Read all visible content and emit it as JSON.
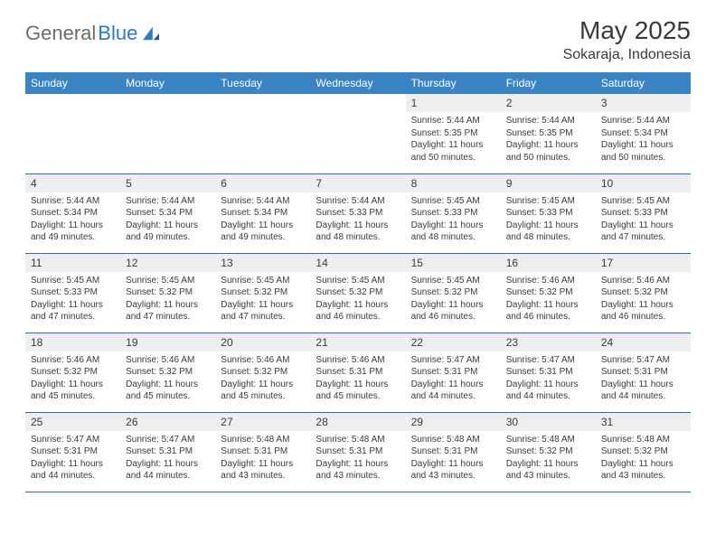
{
  "brand": {
    "text_gray": "General",
    "text_blue": "Blue"
  },
  "title": {
    "month": "May 2025",
    "location": "Sokaraja, Indonesia"
  },
  "colors": {
    "header_bg": "#3b84c4",
    "header_fg": "#ffffff",
    "daynum_bg": "#eceef0",
    "row_border": "#2f6fa8",
    "text": "#3a3a3a",
    "logo_gray": "#6d6d6d",
    "logo_blue": "#2f7ac0",
    "page_bg": "#ffffff"
  },
  "day_headers": [
    "Sunday",
    "Monday",
    "Tuesday",
    "Wednesday",
    "Thursday",
    "Friday",
    "Saturday"
  ],
  "weeks": [
    [
      {
        "blank": true
      },
      {
        "blank": true
      },
      {
        "blank": true
      },
      {
        "blank": true
      },
      {
        "n": "1",
        "sr": "5:44 AM",
        "ss": "5:35 PM",
        "dl": "11 hours and 50 minutes."
      },
      {
        "n": "2",
        "sr": "5:44 AM",
        "ss": "5:35 PM",
        "dl": "11 hours and 50 minutes."
      },
      {
        "n": "3",
        "sr": "5:44 AM",
        "ss": "5:34 PM",
        "dl": "11 hours and 50 minutes."
      }
    ],
    [
      {
        "n": "4",
        "sr": "5:44 AM",
        "ss": "5:34 PM",
        "dl": "11 hours and 49 minutes."
      },
      {
        "n": "5",
        "sr": "5:44 AM",
        "ss": "5:34 PM",
        "dl": "11 hours and 49 minutes."
      },
      {
        "n": "6",
        "sr": "5:44 AM",
        "ss": "5:34 PM",
        "dl": "11 hours and 49 minutes."
      },
      {
        "n": "7",
        "sr": "5:44 AM",
        "ss": "5:33 PM",
        "dl": "11 hours and 48 minutes."
      },
      {
        "n": "8",
        "sr": "5:45 AM",
        "ss": "5:33 PM",
        "dl": "11 hours and 48 minutes."
      },
      {
        "n": "9",
        "sr": "5:45 AM",
        "ss": "5:33 PM",
        "dl": "11 hours and 48 minutes."
      },
      {
        "n": "10",
        "sr": "5:45 AM",
        "ss": "5:33 PM",
        "dl": "11 hours and 47 minutes."
      }
    ],
    [
      {
        "n": "11",
        "sr": "5:45 AM",
        "ss": "5:33 PM",
        "dl": "11 hours and 47 minutes."
      },
      {
        "n": "12",
        "sr": "5:45 AM",
        "ss": "5:32 PM",
        "dl": "11 hours and 47 minutes."
      },
      {
        "n": "13",
        "sr": "5:45 AM",
        "ss": "5:32 PM",
        "dl": "11 hours and 47 minutes."
      },
      {
        "n": "14",
        "sr": "5:45 AM",
        "ss": "5:32 PM",
        "dl": "11 hours and 46 minutes."
      },
      {
        "n": "15",
        "sr": "5:45 AM",
        "ss": "5:32 PM",
        "dl": "11 hours and 46 minutes."
      },
      {
        "n": "16",
        "sr": "5:46 AM",
        "ss": "5:32 PM",
        "dl": "11 hours and 46 minutes."
      },
      {
        "n": "17",
        "sr": "5:46 AM",
        "ss": "5:32 PM",
        "dl": "11 hours and 46 minutes."
      }
    ],
    [
      {
        "n": "18",
        "sr": "5:46 AM",
        "ss": "5:32 PM",
        "dl": "11 hours and 45 minutes."
      },
      {
        "n": "19",
        "sr": "5:46 AM",
        "ss": "5:32 PM",
        "dl": "11 hours and 45 minutes."
      },
      {
        "n": "20",
        "sr": "5:46 AM",
        "ss": "5:32 PM",
        "dl": "11 hours and 45 minutes."
      },
      {
        "n": "21",
        "sr": "5:46 AM",
        "ss": "5:31 PM",
        "dl": "11 hours and 45 minutes."
      },
      {
        "n": "22",
        "sr": "5:47 AM",
        "ss": "5:31 PM",
        "dl": "11 hours and 44 minutes."
      },
      {
        "n": "23",
        "sr": "5:47 AM",
        "ss": "5:31 PM",
        "dl": "11 hours and 44 minutes."
      },
      {
        "n": "24",
        "sr": "5:47 AM",
        "ss": "5:31 PM",
        "dl": "11 hours and 44 minutes."
      }
    ],
    [
      {
        "n": "25",
        "sr": "5:47 AM",
        "ss": "5:31 PM",
        "dl": "11 hours and 44 minutes."
      },
      {
        "n": "26",
        "sr": "5:47 AM",
        "ss": "5:31 PM",
        "dl": "11 hours and 44 minutes."
      },
      {
        "n": "27",
        "sr": "5:48 AM",
        "ss": "5:31 PM",
        "dl": "11 hours and 43 minutes."
      },
      {
        "n": "28",
        "sr": "5:48 AM",
        "ss": "5:31 PM",
        "dl": "11 hours and 43 minutes."
      },
      {
        "n": "29",
        "sr": "5:48 AM",
        "ss": "5:31 PM",
        "dl": "11 hours and 43 minutes."
      },
      {
        "n": "30",
        "sr": "5:48 AM",
        "ss": "5:32 PM",
        "dl": "11 hours and 43 minutes."
      },
      {
        "n": "31",
        "sr": "5:48 AM",
        "ss": "5:32 PM",
        "dl": "11 hours and 43 minutes."
      }
    ]
  ],
  "labels": {
    "sunrise": "Sunrise: ",
    "sunset": "Sunset: ",
    "daylight": "Daylight: "
  }
}
